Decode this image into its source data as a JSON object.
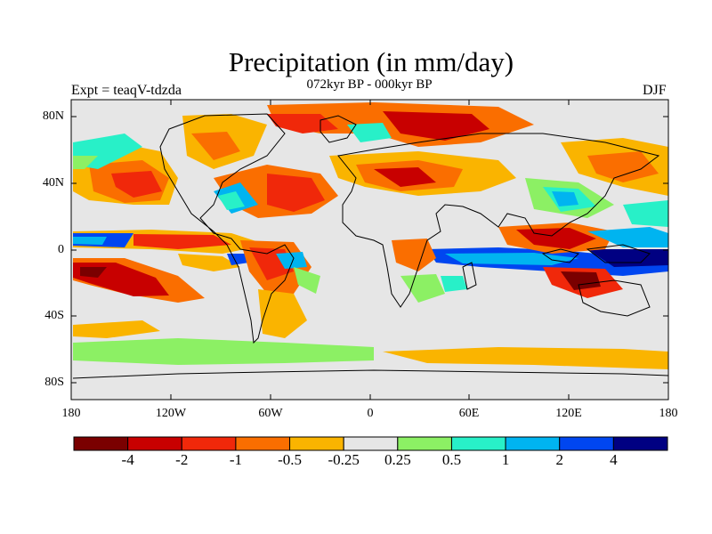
{
  "title": "Precipitation (in mm/day)",
  "subtitle": "072kyr BP - 000kyr BP",
  "experiment_label": "Expt = teaqV-tdzda",
  "season_label": "DJF",
  "map": {
    "lat_ticks": [
      "80N",
      "40N",
      "0",
      "40S",
      "80S"
    ],
    "lon_ticks": [
      "180",
      "120W",
      "60W",
      "0",
      "60E",
      "120E",
      "180"
    ]
  },
  "colorbar": {
    "labels": [
      "-4",
      "-2",
      "-1",
      "-0.5",
      "-0.25",
      "0.25",
      "0.5",
      "1",
      "2",
      "4"
    ],
    "colors": [
      "#7a0000",
      "#c80000",
      "#f0280a",
      "#fa6e00",
      "#fab400",
      "#e6e6e6",
      "#8cf064",
      "#28f0c8",
      "#00b4f0",
      "#0046f0",
      "#000082"
    ]
  }
}
